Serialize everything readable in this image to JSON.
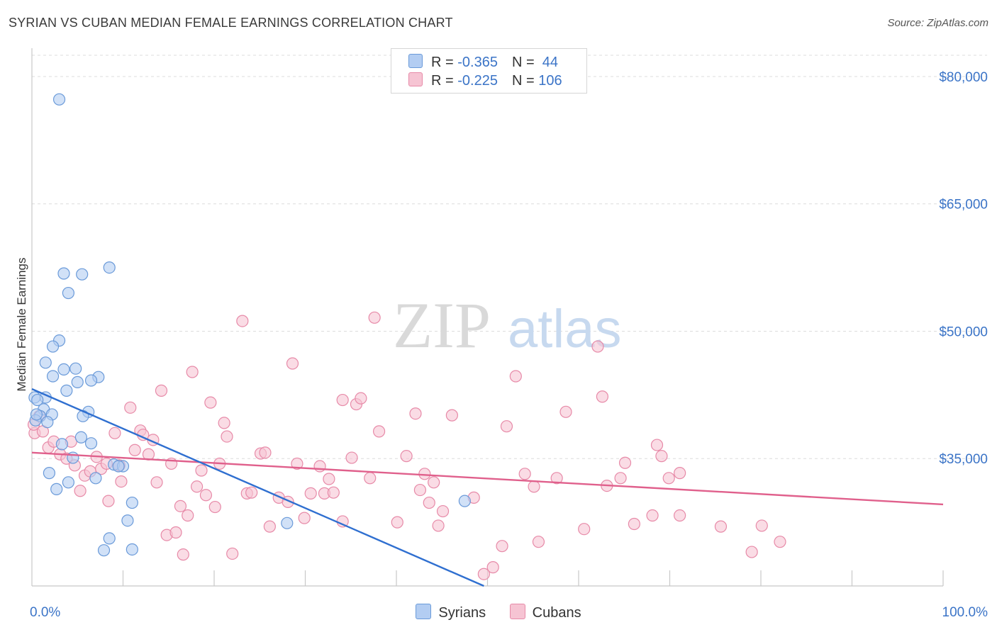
{
  "title": "SYRIAN VS CUBAN MEDIAN FEMALE EARNINGS CORRELATION CHART",
  "source": "Source: ZipAtlas.com",
  "watermark": {
    "zip": "ZIP",
    "atlas": "atlas"
  },
  "legend": {
    "rows": [
      {
        "r_label": "R = ",
        "r_value": "-0.365",
        "n_label": "N = ",
        "n_value": " 44"
      },
      {
        "r_label": "R = ",
        "r_value": "-0.225",
        "n_label": "N = ",
        "n_value": "106"
      }
    ]
  },
  "colors": {
    "syrians_fill": "#b3cdf2",
    "syrians_stroke": "#6a9ad9",
    "syrians_line": "#2f6fd0",
    "cubans_fill": "#f6c4d3",
    "cubans_stroke": "#e78aa8",
    "cubans_line": "#e0608c",
    "axis_label": "#3b74c7",
    "grid": "#dcdcdc"
  },
  "chart_data": {
    "type": "scatter",
    "title": "SYRIAN VS CUBAN MEDIAN FEMALE EARNINGS CORRELATION CHART",
    "xlabel": "",
    "ylabel": "Median Female Earnings",
    "xlim": [
      0,
      100
    ],
    "ylim": [
      20000,
      82500
    ],
    "x_tick_labels": [
      "0.0%",
      "100.0%"
    ],
    "y_ticks": [
      35000,
      50000,
      65000,
      80000
    ],
    "y_tick_labels": [
      "$35,000",
      "$50,000",
      "$65,000",
      "$80,000"
    ],
    "grid": true,
    "legend_position": "top-center",
    "series": [
      {
        "name": "Syrians",
        "r": -0.365,
        "n": 44,
        "trend": {
          "x": [
            0,
            49.6
          ],
          "y": [
            43200,
            20000
          ]
        },
        "points": [
          {
            "x": 3.0,
            "y": 77300
          },
          {
            "x": 8.5,
            "y": 57500
          },
          {
            "x": 3.5,
            "y": 56800
          },
          {
            "x": 5.5,
            "y": 56700
          },
          {
            "x": 4.0,
            "y": 54500
          },
          {
            "x": 3.0,
            "y": 48900
          },
          {
            "x": 2.3,
            "y": 48200
          },
          {
            "x": 1.5,
            "y": 46300
          },
          {
            "x": 3.5,
            "y": 45500
          },
          {
            "x": 4.8,
            "y": 45600
          },
          {
            "x": 2.3,
            "y": 44700
          },
          {
            "x": 7.3,
            "y": 44600
          },
          {
            "x": 6.5,
            "y": 44200
          },
          {
            "x": 5.0,
            "y": 44000
          },
          {
            "x": 3.8,
            "y": 43000
          },
          {
            "x": 0.3,
            "y": 42200
          },
          {
            "x": 1.5,
            "y": 42200
          },
          {
            "x": 0.6,
            "y": 41900
          },
          {
            "x": 1.3,
            "y": 40800
          },
          {
            "x": 6.2,
            "y": 40500
          },
          {
            "x": 2.2,
            "y": 40200
          },
          {
            "x": 0.9,
            "y": 40000
          },
          {
            "x": 5.6,
            "y": 40000
          },
          {
            "x": 0.4,
            "y": 39500
          },
          {
            "x": 1.7,
            "y": 39300
          },
          {
            "x": 5.4,
            "y": 37500
          },
          {
            "x": 3.3,
            "y": 36700
          },
          {
            "x": 6.5,
            "y": 36800
          },
          {
            "x": 4.5,
            "y": 35100
          },
          {
            "x": 9.0,
            "y": 34300
          },
          {
            "x": 10.0,
            "y": 34100
          },
          {
            "x": 9.5,
            "y": 34100
          },
          {
            "x": 1.9,
            "y": 33300
          },
          {
            "x": 7.0,
            "y": 32700
          },
          {
            "x": 4.0,
            "y": 32200
          },
          {
            "x": 2.7,
            "y": 31400
          },
          {
            "x": 11.0,
            "y": 29800
          },
          {
            "x": 28.0,
            "y": 27400
          },
          {
            "x": 47.5,
            "y": 30000
          },
          {
            "x": 10.5,
            "y": 27700
          },
          {
            "x": 8.5,
            "y": 25600
          },
          {
            "x": 7.9,
            "y": 24200
          },
          {
            "x": 11.0,
            "y": 24300
          },
          {
            "x": 0.5,
            "y": 40200
          }
        ]
      },
      {
        "name": "Cubans",
        "r": -0.225,
        "n": 106,
        "trend": {
          "x": [
            0,
            100
          ],
          "y": [
            35700,
            29600
          ]
        },
        "points": [
          {
            "x": 0.3,
            "y": 38000
          },
          {
            "x": 0.8,
            "y": 40000
          },
          {
            "x": 1.2,
            "y": 38200
          },
          {
            "x": 1.8,
            "y": 36300
          },
          {
            "x": 2.4,
            "y": 37000
          },
          {
            "x": 3.1,
            "y": 35500
          },
          {
            "x": 3.8,
            "y": 35000
          },
          {
            "x": 4.3,
            "y": 37000
          },
          {
            "x": 4.7,
            "y": 34200
          },
          {
            "x": 5.3,
            "y": 31200
          },
          {
            "x": 5.8,
            "y": 33000
          },
          {
            "x": 6.4,
            "y": 33500
          },
          {
            "x": 7.1,
            "y": 35200
          },
          {
            "x": 7.6,
            "y": 33800
          },
          {
            "x": 8.2,
            "y": 34400
          },
          {
            "x": 8.4,
            "y": 30000
          },
          {
            "x": 9.1,
            "y": 38000
          },
          {
            "x": 9.6,
            "y": 34200
          },
          {
            "x": 9.8,
            "y": 32300
          },
          {
            "x": 10.8,
            "y": 41000
          },
          {
            "x": 11.3,
            "y": 36000
          },
          {
            "x": 11.9,
            "y": 38300
          },
          {
            "x": 12.2,
            "y": 37800
          },
          {
            "x": 12.8,
            "y": 35500
          },
          {
            "x": 13.3,
            "y": 37200
          },
          {
            "x": 13.7,
            "y": 32200
          },
          {
            "x": 14.2,
            "y": 43000
          },
          {
            "x": 14.8,
            "y": 26000
          },
          {
            "x": 15.3,
            "y": 34400
          },
          {
            "x": 15.8,
            "y": 26300
          },
          {
            "x": 16.3,
            "y": 29400
          },
          {
            "x": 16.6,
            "y": 23700
          },
          {
            "x": 17.1,
            "y": 28300
          },
          {
            "x": 17.6,
            "y": 45200
          },
          {
            "x": 18.1,
            "y": 31700
          },
          {
            "x": 18.6,
            "y": 33600
          },
          {
            "x": 19.1,
            "y": 30700
          },
          {
            "x": 19.6,
            "y": 41600
          },
          {
            "x": 20.1,
            "y": 29300
          },
          {
            "x": 20.6,
            "y": 34400
          },
          {
            "x": 21.1,
            "y": 39200
          },
          {
            "x": 21.4,
            "y": 37600
          },
          {
            "x": 22.0,
            "y": 23800
          },
          {
            "x": 23.1,
            "y": 51200
          },
          {
            "x": 23.6,
            "y": 30900
          },
          {
            "x": 24.1,
            "y": 31000
          },
          {
            "x": 25.1,
            "y": 35600
          },
          {
            "x": 25.6,
            "y": 35700
          },
          {
            "x": 26.1,
            "y": 27000
          },
          {
            "x": 27.1,
            "y": 30400
          },
          {
            "x": 28.1,
            "y": 29900
          },
          {
            "x": 28.6,
            "y": 46200
          },
          {
            "x": 29.1,
            "y": 34400
          },
          {
            "x": 29.9,
            "y": 28000
          },
          {
            "x": 30.6,
            "y": 30900
          },
          {
            "x": 31.6,
            "y": 34100
          },
          {
            "x": 32.1,
            "y": 30900
          },
          {
            "x": 32.6,
            "y": 32600
          },
          {
            "x": 33.1,
            "y": 31000
          },
          {
            "x": 34.1,
            "y": 27600
          },
          {
            "x": 34.1,
            "y": 41900
          },
          {
            "x": 35.1,
            "y": 35100
          },
          {
            "x": 35.6,
            "y": 41400
          },
          {
            "x": 36.1,
            "y": 42100
          },
          {
            "x": 37.1,
            "y": 32700
          },
          {
            "x": 37.6,
            "y": 51600
          },
          {
            "x": 38.1,
            "y": 38200
          },
          {
            "x": 40.1,
            "y": 27500
          },
          {
            "x": 41.1,
            "y": 35300
          },
          {
            "x": 42.1,
            "y": 40300
          },
          {
            "x": 42.6,
            "y": 31300
          },
          {
            "x": 43.1,
            "y": 33200
          },
          {
            "x": 43.6,
            "y": 29800
          },
          {
            "x": 44.1,
            "y": 32200
          },
          {
            "x": 44.6,
            "y": 27100
          },
          {
            "x": 45.1,
            "y": 28800
          },
          {
            "x": 46.1,
            "y": 40100
          },
          {
            "x": 48.5,
            "y": 30400
          },
          {
            "x": 49.6,
            "y": 21400
          },
          {
            "x": 50.6,
            "y": 22200
          },
          {
            "x": 51.6,
            "y": 24700
          },
          {
            "x": 52.1,
            "y": 38800
          },
          {
            "x": 53.1,
            "y": 44700
          },
          {
            "x": 54.1,
            "y": 33200
          },
          {
            "x": 55.1,
            "y": 31700
          },
          {
            "x": 55.6,
            "y": 25200
          },
          {
            "x": 57.6,
            "y": 32700
          },
          {
            "x": 58.6,
            "y": 40500
          },
          {
            "x": 60.6,
            "y": 26700
          },
          {
            "x": 62.1,
            "y": 48200
          },
          {
            "x": 62.6,
            "y": 42300
          },
          {
            "x": 63.1,
            "y": 31800
          },
          {
            "x": 64.6,
            "y": 32700
          },
          {
            "x": 65.1,
            "y": 34500
          },
          {
            "x": 66.1,
            "y": 27300
          },
          {
            "x": 68.1,
            "y": 28300
          },
          {
            "x": 68.6,
            "y": 36600
          },
          {
            "x": 69.1,
            "y": 35300
          },
          {
            "x": 69.9,
            "y": 32700
          },
          {
            "x": 71.1,
            "y": 33300
          },
          {
            "x": 71.1,
            "y": 28300
          },
          {
            "x": 75.6,
            "y": 27000
          },
          {
            "x": 79.0,
            "y": 24000
          },
          {
            "x": 80.1,
            "y": 27100
          },
          {
            "x": 82.1,
            "y": 25200
          },
          {
            "x": 0.2,
            "y": 39000
          }
        ]
      }
    ]
  },
  "bottom_legend": {
    "syrians": "Syrians",
    "cubans": "Cubans"
  }
}
